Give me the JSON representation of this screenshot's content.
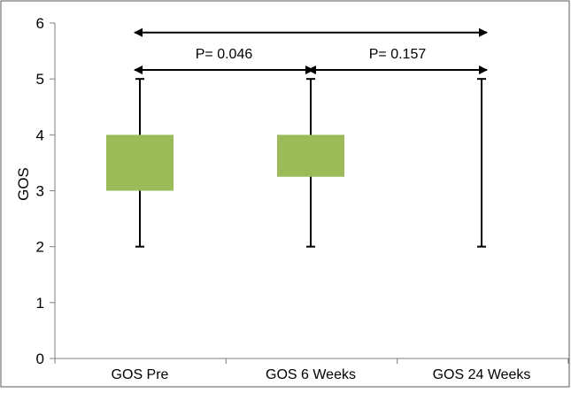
{
  "chart_data": {
    "type": "boxplot",
    "title": "",
    "xlabel": "",
    "ylabel": "GOS",
    "ylim": [
      0,
      6
    ],
    "yticks": [
      0,
      1,
      2,
      3,
      4,
      5,
      6
    ],
    "grid": false,
    "categories": [
      "GOS Pre",
      "GOS 6 Weeks",
      "GOS 24 Weeks"
    ],
    "boxes": [
      {
        "category": "GOS Pre",
        "min": 2,
        "q1": 3,
        "q3": 4,
        "max": 5
      },
      {
        "category": "GOS 6 Weeks",
        "min": 2,
        "q1": 3.25,
        "q3": 4,
        "max": 5
      },
      {
        "category": "GOS 24 Weeks",
        "min": 2,
        "q1": null,
        "q3": null,
        "max": 5
      }
    ],
    "comparisons": [
      {
        "from": "GOS Pre",
        "to": "GOS 24 Weeks",
        "label": "",
        "level": 5.83
      },
      {
        "from": "GOS Pre",
        "to": "GOS 6 Weeks",
        "label": "P= 0.046",
        "level": 5.16
      },
      {
        "from": "GOS 6 Weeks",
        "to": "GOS 24 Weeks",
        "label": "P= 0.157",
        "level": 5.16
      }
    ],
    "colors": {
      "box_fill": "#9bbb59",
      "line": "#000000",
      "frame": "#595959"
    }
  }
}
